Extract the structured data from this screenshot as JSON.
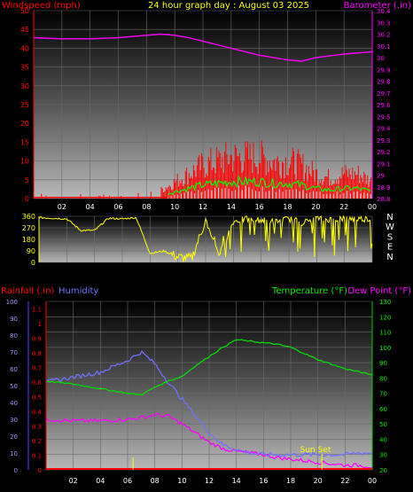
{
  "header": {
    "left": "Windspeed (mph)",
    "center": "24 hour graph day : August 03 2025",
    "right": "Barometer (.in)"
  },
  "wind_panel": {
    "left_ticks": [
      "0",
      "5",
      "10",
      "15",
      "20",
      "25",
      "30",
      "35",
      "40",
      "45",
      "50"
    ],
    "right_ticks": [
      "28.8",
      "28.9",
      "29",
      "29.1",
      "29.2",
      "29.3",
      "29.4",
      "29.5",
      "29.6",
      "29.7",
      "29.8",
      "29.9",
      "30",
      "30.1",
      "30.2",
      "30.3",
      "30.4"
    ],
    "x_ticks": [
      "02",
      "04",
      "06",
      "08",
      "10",
      "12",
      "14",
      "16",
      "18",
      "20",
      "22",
      "00"
    ]
  },
  "dir_panel": {
    "left_ticks": [
      "0",
      "90",
      "180",
      "270",
      "360"
    ],
    "compass": [
      "N",
      "W",
      "S",
      "E",
      "N"
    ]
  },
  "temp_panel": {
    "header_left_a": "Rainfall (.in)",
    "header_left_b": "Humidity",
    "header_right_a": "Temperature (°F)",
    "header_right_b": "Dew Point (°F)",
    "humidity_ticks": [
      "0",
      "10",
      "20",
      "30",
      "40",
      "50",
      "60",
      "70",
      "80",
      "90",
      "100"
    ],
    "rain_ticks": [
      "0",
      "0.1",
      "0.2",
      "0.3",
      "0.4",
      "0.5",
      "0.6",
      "0.7",
      "0.8",
      "0.9",
      "1",
      "1.1"
    ],
    "temp_ticks": [
      "20",
      "30",
      "40",
      "50",
      "60",
      "70",
      "80",
      "90",
      "100",
      "110",
      "120",
      "130"
    ],
    "x_ticks": [
      "02",
      "04",
      "06",
      "08",
      "10",
      "12",
      "14",
      "16",
      "18",
      "20",
      "22",
      "00"
    ],
    "annotation": "Sun Set"
  },
  "colors": {
    "wind": "#ff0000",
    "gust": "#00ff00",
    "barometer": "#ff00ff",
    "direction": "#ffff00",
    "humidity": "#7070ff",
    "temperature": "#00dd00",
    "dewpoint": "#ff00ff",
    "rain": "#ff0000",
    "axis_blue": "#4444ff"
  },
  "chart_data": [
    {
      "type": "line",
      "title": "24 hour graph day : August 03 2025",
      "x_unit": "hour",
      "xlim": [
        0,
        24
      ],
      "ylim_left": [
        0,
        50
      ],
      "ylim_right": [
        28.8,
        30.4
      ],
      "series": [
        {
          "name": "Barometer (.in)",
          "axis": "right",
          "x": [
            0,
            2,
            4,
            6,
            8,
            9,
            10,
            11,
            12,
            14,
            16,
            18,
            19,
            20,
            22,
            24
          ],
          "y": [
            30.17,
            30.16,
            30.16,
            30.17,
            30.19,
            30.2,
            30.19,
            30.17,
            30.14,
            30.08,
            30.02,
            29.98,
            29.97,
            30.0,
            30.03,
            30.05
          ]
        },
        {
          "name": "Windspeed (mph)",
          "axis": "left",
          "x": [
            0,
            1,
            2,
            3,
            4,
            5,
            6,
            7,
            8,
            9,
            10,
            11,
            12,
            13,
            14,
            15,
            16,
            17,
            18,
            19,
            20,
            21,
            22,
            23,
            24
          ],
          "y": [
            1,
            1,
            1,
            1,
            1,
            1,
            1,
            1,
            2,
            2,
            4,
            6,
            8,
            9,
            10,
            10,
            10,
            9,
            9,
            8,
            6,
            5,
            6,
            6,
            4
          ]
        }
      ]
    },
    {
      "type": "line",
      "x_unit": "hour",
      "xlim": [
        0,
        24
      ],
      "ylim": [
        0,
        360
      ],
      "series": [
        {
          "name": "",
          "x": [
            0,
            1,
            2,
            3,
            4,
            5,
            6,
            7,
            8,
            9,
            10,
            11,
            12,
            13,
            14,
            15,
            16,
            17,
            18,
            19,
            20,
            21,
            22,
            23,
            24
          ],
          "y": [
            350,
            345,
            340,
            250,
            250,
            345,
            340,
            350,
            70,
            90,
            40,
            30,
            330,
            60,
            320,
            340,
            330,
            320,
            340,
            310,
            345,
            335,
            345,
            340,
            340
          ]
        }
      ]
    },
    {
      "type": "line",
      "x_unit": "hour",
      "xlim": [
        0,
        24
      ],
      "ylim_humidity": [
        0,
        100
      ],
      "ylim_temp": [
        20,
        130
      ],
      "series": [
        {
          "name": "Humidity",
          "axis": "humidity",
          "x": [
            0,
            2,
            4,
            6,
            7,
            8,
            9,
            10,
            11,
            12,
            13,
            14,
            15,
            16,
            17,
            18,
            19,
            20,
            21,
            22,
            23,
            24
          ],
          "y": [
            52,
            55,
            58,
            65,
            70,
            63,
            52,
            42,
            32,
            22,
            15,
            12,
            10,
            9,
            9,
            9,
            9,
            9,
            9,
            9,
            10,
            10
          ]
        },
        {
          "name": "Temperature (°F)",
          "axis": "temp",
          "x": [
            0,
            2,
            4,
            6,
            7,
            8,
            9,
            10,
            11,
            12,
            13,
            14,
            15,
            16,
            17,
            18,
            19,
            20,
            21,
            22,
            23,
            24
          ],
          "y": [
            78,
            76,
            73,
            70,
            69,
            74,
            78,
            81,
            88,
            94,
            100,
            105,
            104,
            103,
            102,
            100,
            96,
            92,
            89,
            86,
            84,
            82
          ]
        },
        {
          "name": "Dew Point (°F)",
          "axis": "temp",
          "x": [
            0,
            2,
            4,
            6,
            7,
            8,
            9,
            10,
            11,
            12,
            13,
            14,
            15,
            16,
            17,
            18,
            19,
            20,
            21,
            22,
            23,
            24
          ],
          "y": [
            53,
            52,
            52,
            53,
            54,
            56,
            55,
            50,
            44,
            38,
            34,
            32,
            31,
            30,
            28,
            27,
            26,
            25,
            24,
            23,
            23,
            22
          ]
        },
        {
          "name": "Rainfall (.in)",
          "axis": "rain",
          "x": [
            0,
            24
          ],
          "y": [
            0,
            0
          ]
        }
      ]
    }
  ]
}
